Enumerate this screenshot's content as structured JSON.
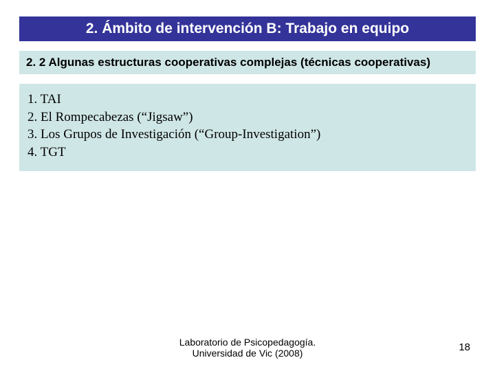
{
  "colors": {
    "title_bg": "#333399",
    "title_fg": "#ffffff",
    "subtitle_bg": "#cfe6e6",
    "subtitle_fg": "#000000",
    "list_bg": "#cfe6e6",
    "list_fg": "#000000"
  },
  "title": "2. Ámbito de intervención B: Trabajo en equipo",
  "subtitle": "2. 2 Algunas estructuras cooperativas complejas (técnicas cooperativas)",
  "list": [
    "1. TAI",
    "2. El Rompecabezas (“Jigsaw”)",
    "3. Los Grupos de Investigación (“Group-Investigation”)",
    "4. TGT"
  ],
  "footer": {
    "line1": "Laboratorio de Psicopedagogía.",
    "line2": "Universidad de Vic (2008)"
  },
  "page_number": "18"
}
